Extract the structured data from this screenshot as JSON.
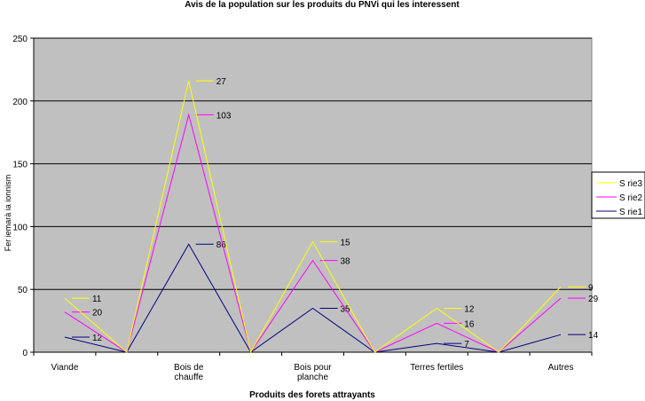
{
  "chart_data": {
    "type": "line",
    "stacked": true,
    "title": "Avis de la population sur les produits du PNVi qui les interessent",
    "xlabel": "Produits des forets attrayants",
    "ylabel": "Fer iemarà ia ionnism",
    "ylim": [
      0,
      250
    ],
    "yticks": [
      0,
      50,
      100,
      150,
      200,
      250
    ],
    "categories": [
      "Viande",
      "",
      "Bois de chauffe",
      "",
      "Bois pour planche",
      "",
      "Terres fertiles",
      "",
      "Autres"
    ],
    "category_lines": [
      [
        "Viande"
      ],
      [],
      [
        "Bois de",
        "chauffe"
      ],
      [],
      [
        "Bois pour",
        "planche"
      ],
      [],
      [
        "Terres fertiles"
      ],
      [],
      [
        "Autres"
      ]
    ],
    "series": [
      {
        "name": "S  rie1",
        "color": "#000080",
        "values": [
          12,
          0,
          86,
          0,
          35,
          0,
          7,
          0,
          14
        ]
      },
      {
        "name": "S  rie2",
        "color": "#ff00ff",
        "values": [
          20,
          0,
          103,
          0,
          38,
          0,
          16,
          0,
          29
        ]
      },
      {
        "name": "S  rie3",
        "color": "#ffff00",
        "values": [
          11,
          0,
          27,
          0,
          15,
          0,
          12,
          0,
          9
        ]
      }
    ],
    "grid": true,
    "legend": "right",
    "plot_bg": "#c0c0c0"
  }
}
